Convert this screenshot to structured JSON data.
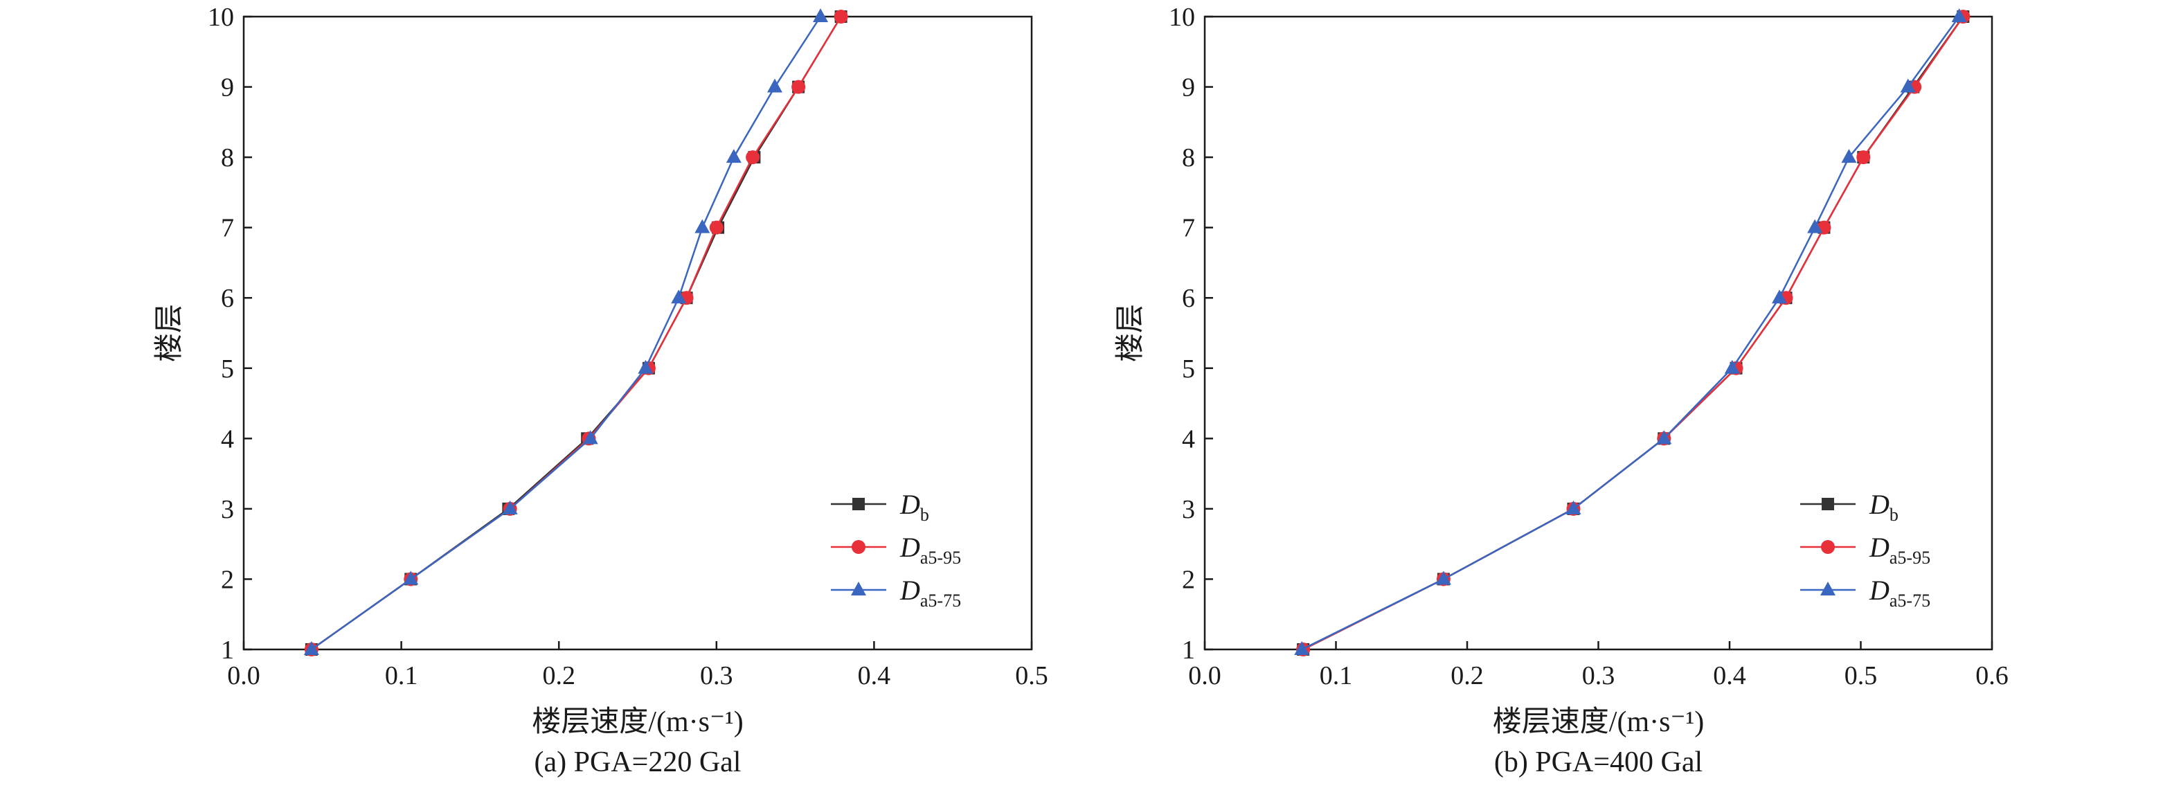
{
  "chart_data": [
    {
      "type": "line",
      "caption": "(a) PGA=220 Gal",
      "xlabel": "楼层速度/(m·s⁻¹)",
      "ylabel": "楼层",
      "xlim": [
        0,
        0.5
      ],
      "ylim": [
        1,
        10
      ],
      "xticks": [
        "0.0",
        "0.1",
        "0.2",
        "0.3",
        "0.4",
        "0.5"
      ],
      "yticks": [
        "1",
        "2",
        "3",
        "4",
        "5",
        "6",
        "7",
        "8",
        "9",
        "10"
      ],
      "legend_position": "bottom-right",
      "series": [
        {
          "name": "D_b",
          "label_main": "D",
          "label_sub": "b",
          "color": "#333333",
          "marker": "square",
          "x": [
            0.043,
            0.106,
            0.168,
            0.218,
            0.257,
            0.281,
            0.301,
            0.324,
            0.352,
            0.379
          ],
          "y": [
            1,
            2,
            3,
            4,
            5,
            6,
            7,
            8,
            9,
            10
          ]
        },
        {
          "name": "D_a5-95",
          "label_main": "D",
          "label_sub": "a5-95",
          "color": "#e8303a",
          "marker": "circle",
          "x": [
            0.043,
            0.106,
            0.169,
            0.219,
            0.257,
            0.281,
            0.3,
            0.323,
            0.352,
            0.379
          ],
          "y": [
            1,
            2,
            3,
            4,
            5,
            6,
            7,
            8,
            9,
            10
          ]
        },
        {
          "name": "D_a5-75",
          "label_main": "D",
          "label_sub": "a5-75",
          "color": "#3a66c0",
          "marker": "triangle",
          "x": [
            0.043,
            0.106,
            0.169,
            0.22,
            0.255,
            0.276,
            0.291,
            0.311,
            0.337,
            0.366
          ],
          "y": [
            1,
            2,
            3,
            4,
            5,
            6,
            7,
            8,
            9,
            10
          ]
        }
      ]
    },
    {
      "type": "line",
      "caption": "(b) PGA=400 Gal",
      "xlabel": "楼层速度/(m·s⁻¹)",
      "ylabel": "楼层",
      "xlim": [
        0,
        0.6
      ],
      "ylim": [
        1,
        10
      ],
      "xticks": [
        "0.0",
        "0.1",
        "0.2",
        "0.3",
        "0.4",
        "0.5",
        "0.6"
      ],
      "yticks": [
        "1",
        "2",
        "3",
        "4",
        "5",
        "6",
        "7",
        "8",
        "9",
        "10"
      ],
      "legend_position": "bottom-right",
      "series": [
        {
          "name": "D_b",
          "label_main": "D",
          "label_sub": "b",
          "color": "#333333",
          "marker": "square",
          "x": [
            0.075,
            0.182,
            0.281,
            0.35,
            0.405,
            0.443,
            0.472,
            0.502,
            0.54,
            0.578
          ],
          "y": [
            1,
            2,
            3,
            4,
            5,
            6,
            7,
            8,
            9,
            10
          ]
        },
        {
          "name": "D_a5-95",
          "label_main": "D",
          "label_sub": "a5-95",
          "color": "#e8303a",
          "marker": "circle",
          "x": [
            0.075,
            0.182,
            0.281,
            0.35,
            0.405,
            0.443,
            0.472,
            0.502,
            0.541,
            0.578
          ],
          "y": [
            1,
            2,
            3,
            4,
            5,
            6,
            7,
            8,
            9,
            10
          ]
        },
        {
          "name": "D_a5-75",
          "label_main": "D",
          "label_sub": "a5-75",
          "color": "#3a66c0",
          "marker": "triangle",
          "x": [
            0.074,
            0.182,
            0.281,
            0.35,
            0.402,
            0.438,
            0.465,
            0.491,
            0.536,
            0.575
          ],
          "y": [
            1,
            2,
            3,
            4,
            5,
            6,
            7,
            8,
            9,
            10
          ]
        }
      ]
    }
  ]
}
